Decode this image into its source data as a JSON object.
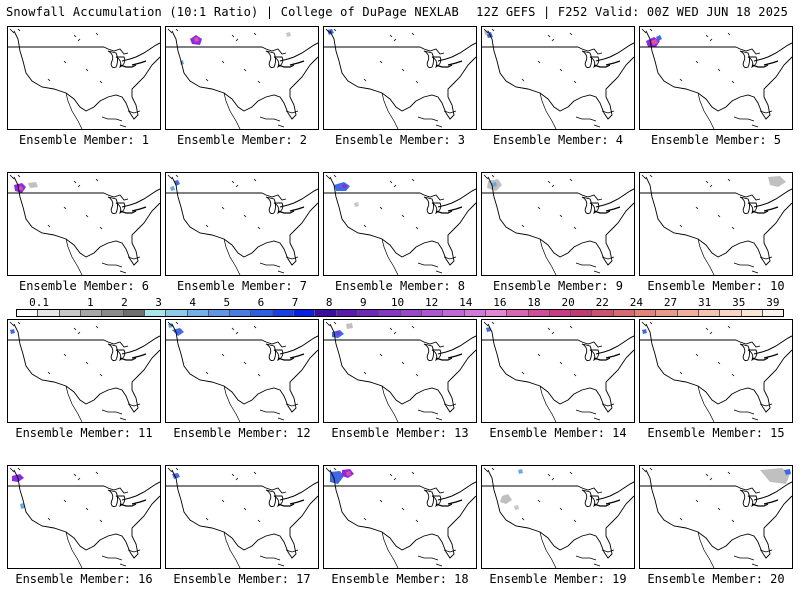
{
  "header": {
    "title_left": "Snowfall Accumulation (10:1 Ratio) | College of DuPage NEXLAB",
    "title_right": "12Z GEFS | F252 Valid: 00Z WED JUN 18 2025"
  },
  "panels": [
    {
      "label": "Ensemble Member: 1",
      "snow": []
    },
    {
      "label": "Ensemble Member: 2",
      "snow": [
        [
          "#8a2be2",
          [
            [
              24,
              12
            ],
            [
              30,
              8
            ],
            [
              36,
              12
            ],
            [
              34,
              18
            ],
            [
              26,
              17
            ]
          ]
        ],
        [
          "#e84aa5",
          [
            [
              28,
              11
            ],
            [
              32,
              10
            ],
            [
              33,
              14
            ],
            [
              29,
              15
            ]
          ]
        ],
        [
          "#6fa8dc",
          [
            [
              14,
              34
            ],
            [
              17,
              33
            ],
            [
              18,
              37
            ],
            [
              15,
              38
            ]
          ]
        ],
        [
          "#c8c8c8",
          [
            [
              120,
              6
            ],
            [
              124,
              5
            ],
            [
              125,
              9
            ],
            [
              121,
              10
            ]
          ]
        ]
      ]
    },
    {
      "label": "Ensemble Member: 3",
      "snow": [
        [
          "#4169e1",
          [
            [
              3,
              3
            ],
            [
              8,
              2
            ],
            [
              10,
              6
            ],
            [
              5,
              8
            ]
          ]
        ]
      ]
    },
    {
      "label": "Ensemble Member: 4",
      "snow": [
        [
          "#4169e1",
          [
            [
              4,
              6
            ],
            [
              9,
              5
            ],
            [
              11,
              10
            ],
            [
              6,
              11
            ]
          ]
        ],
        [
          "#c0c0c0",
          [
            [
              2,
              4
            ],
            [
              6,
              3
            ],
            [
              7,
              7
            ],
            [
              3,
              8
            ]
          ]
        ]
      ]
    },
    {
      "label": "Ensemble Member: 5",
      "snow": [
        [
          "#8a2be2",
          [
            [
              6,
              14
            ],
            [
              14,
              10
            ],
            [
              20,
              14
            ],
            [
              16,
              20
            ],
            [
              8,
              20
            ]
          ]
        ],
        [
          "#e84aa5",
          [
            [
              11,
              14
            ],
            [
              16,
              12
            ],
            [
              18,
              16
            ],
            [
              13,
              18
            ]
          ]
        ],
        [
          "#4169e1",
          [
            [
              16,
              10
            ],
            [
              20,
              8
            ],
            [
              22,
              12
            ],
            [
              18,
              14
            ]
          ]
        ]
      ]
    },
    {
      "label": "Ensemble Member: 6",
      "snow": [
        [
          "#8a2be2",
          [
            [
              6,
              12
            ],
            [
              14,
              10
            ],
            [
              18,
              14
            ],
            [
              14,
              20
            ],
            [
              7,
              18
            ]
          ]
        ],
        [
          "#e84aa5",
          [
            [
              10,
              14
            ],
            [
              14,
              13
            ],
            [
              15,
              17
            ],
            [
              11,
              17
            ]
          ]
        ],
        [
          "#c0c0c0",
          [
            [
              20,
              10
            ],
            [
              28,
              9
            ],
            [
              30,
              14
            ],
            [
              22,
              15
            ]
          ]
        ]
      ]
    },
    {
      "label": "Ensemble Member: 7",
      "snow": [
        [
          "#4169e1",
          [
            [
              8,
              8
            ],
            [
              12,
              7
            ],
            [
              14,
              11
            ],
            [
              10,
              13
            ]
          ]
        ],
        [
          "#6fa8dc",
          [
            [
              4,
              14
            ],
            [
              8,
              13
            ],
            [
              9,
              17
            ],
            [
              5,
              18
            ]
          ]
        ]
      ]
    },
    {
      "label": "Ensemble Member: 8",
      "snow": [
        [
          "#4169e1",
          [
            [
              10,
              12
            ],
            [
              20,
              9
            ],
            [
              26,
              13
            ],
            [
              22,
              18
            ],
            [
              12,
              18
            ]
          ]
        ],
        [
          "#8a2be2",
          [
            [
              18,
              12
            ],
            [
              22,
              11
            ],
            [
              23,
              15
            ],
            [
              19,
              15
            ]
          ]
        ],
        [
          "#c8c8c8",
          [
            [
              30,
              30
            ],
            [
              34,
              29
            ],
            [
              35,
              33
            ],
            [
              31,
              34
            ]
          ]
        ]
      ]
    },
    {
      "label": "Ensemble Member: 9",
      "snow": [
        [
          "#c0c0c0",
          [
            [
              6,
              8
            ],
            [
              16,
              6
            ],
            [
              20,
              12
            ],
            [
              14,
              18
            ],
            [
              5,
              15
            ]
          ]
        ],
        [
          "#6fa8dc",
          [
            [
              10,
              10
            ],
            [
              14,
              9
            ],
            [
              15,
              13
            ],
            [
              11,
              14
            ]
          ]
        ]
      ]
    },
    {
      "label": "Ensemble Member: 10",
      "snow": [
        [
          "#c0c0c0",
          [
            [
              128,
              4
            ],
            [
              140,
              3
            ],
            [
              146,
              9
            ],
            [
              138,
              14
            ],
            [
              130,
              12
            ]
          ]
        ]
      ]
    },
    {
      "label": "Ensemble Member: 11",
      "snow": [
        [
          "#4169e1",
          [
            [
              2,
              10
            ],
            [
              6,
              9
            ],
            [
              7,
              13
            ],
            [
              3,
              14
            ]
          ]
        ]
      ]
    },
    {
      "label": "Ensemble Member: 12",
      "snow": [
        [
          "#4169e1",
          [
            [
              6,
              10
            ],
            [
              14,
              8
            ],
            [
              18,
              12
            ],
            [
              12,
              16
            ]
          ]
        ],
        [
          "#6fa8dc",
          [
            [
              2,
              4
            ],
            [
              6,
              3
            ],
            [
              7,
              7
            ],
            [
              3,
              8
            ]
          ]
        ]
      ]
    },
    {
      "label": "Ensemble Member: 13",
      "snow": [
        [
          "#4169e1",
          [
            [
              8,
              12
            ],
            [
              16,
              10
            ],
            [
              20,
              14
            ],
            [
              14,
              18
            ],
            [
              8,
              17
            ]
          ]
        ],
        [
          "#8a2be2",
          [
            [
              12,
              12
            ],
            [
              15,
              11
            ],
            [
              16,
              15
            ],
            [
              13,
              15
            ]
          ]
        ],
        [
          "#c0c0c0",
          [
            [
              22,
              4
            ],
            [
              28,
              3
            ],
            [
              29,
              8
            ],
            [
              23,
              9
            ]
          ]
        ]
      ]
    },
    {
      "label": "Ensemble Member: 14",
      "snow": [
        [
          "#4169e1",
          [
            [
              4,
              8
            ],
            [
              8,
              7
            ],
            [
              9,
              11
            ],
            [
              5,
              12
            ]
          ]
        ]
      ]
    },
    {
      "label": "Ensemble Member: 15",
      "snow": [
        [
          "#4169e1",
          [
            [
              2,
              10
            ],
            [
              6,
              9
            ],
            [
              7,
              13
            ],
            [
              3,
              14
            ]
          ]
        ]
      ]
    },
    {
      "label": "Ensemble Member: 16",
      "snow": [
        [
          "#8a2be2",
          [
            [
              4,
              10
            ],
            [
              12,
              8
            ],
            [
              16,
              12
            ],
            [
              10,
              16
            ],
            [
              4,
              15
            ]
          ]
        ],
        [
          "#6fa8dc",
          [
            [
              12,
              38
            ],
            [
              16,
              37
            ],
            [
              17,
              42
            ],
            [
              13,
              43
            ]
          ]
        ]
      ]
    },
    {
      "label": "Ensemble Member: 17",
      "snow": [
        [
          "#4169e1",
          [
            [
              6,
              8
            ],
            [
              12,
              7
            ],
            [
              14,
              11
            ],
            [
              8,
              13
            ]
          ]
        ]
      ]
    },
    {
      "label": "Ensemble Member: 18",
      "snow": [
        [
          "#4169e1",
          [
            [
              6,
              6
            ],
            [
              16,
              5
            ],
            [
              20,
              10
            ],
            [
              14,
              18
            ],
            [
              6,
              16
            ]
          ]
        ],
        [
          "#8a2be2",
          [
            [
              18,
              4
            ],
            [
              26,
              3
            ],
            [
              30,
              8
            ],
            [
              24,
              12
            ],
            [
              18,
              10
            ]
          ]
        ],
        [
          "#e84aa5",
          [
            [
              22,
              6
            ],
            [
              26,
              5
            ],
            [
              27,
              9
            ],
            [
              23,
              10
            ]
          ]
        ]
      ]
    },
    {
      "label": "Ensemble Member: 19",
      "snow": [
        [
          "#c0c0c0",
          [
            [
              20,
              30
            ],
            [
              26,
              28
            ],
            [
              30,
              34
            ],
            [
              24,
              38
            ],
            [
              18,
              36
            ]
          ]
        ],
        [
          "#c8c8c8",
          [
            [
              32,
              40
            ],
            [
              36,
              39
            ],
            [
              37,
              43
            ],
            [
              33,
              44
            ]
          ]
        ],
        [
          "#6fa8dc",
          [
            [
              36,
              4
            ],
            [
              40,
              3
            ],
            [
              41,
              7
            ],
            [
              37,
              8
            ]
          ]
        ]
      ]
    },
    {
      "label": "Ensemble Member: 20",
      "snow": [
        [
          "#c0c0c0",
          [
            [
              120,
              4
            ],
            [
              142,
              2
            ],
            [
              150,
              8
            ],
            [
              146,
              18
            ],
            [
              130,
              16
            ]
          ]
        ],
        [
          "#4169e1",
          [
            [
              144,
              4
            ],
            [
              150,
              3
            ],
            [
              151,
              8
            ],
            [
              146,
              9
            ]
          ]
        ]
      ]
    }
  ],
  "colorbar": {
    "colors": [
      "#ffffff",
      "#e6e6e6",
      "#c8c8c8",
      "#a8a8a8",
      "#8a8a8a",
      "#6e6e6e",
      "#a8e6ea",
      "#8ecbe8",
      "#74b0e6",
      "#5f95e4",
      "#4a7be0",
      "#2f5ee0",
      "#1a3fe0",
      "#0a1ee0",
      "#3a0ea0",
      "#5a1ab0",
      "#6e28b8",
      "#8238c0",
      "#9648c8",
      "#aa58d0",
      "#be68d8",
      "#d278d8",
      "#e088d4",
      "#d866b4",
      "#d04c9c",
      "#c83a84",
      "#c23a72",
      "#cc5272",
      "#d66a74",
      "#e08478",
      "#e89a86",
      "#eeb09a",
      "#f2c4ae",
      "#f6d6c2",
      "#f9e6d6",
      "#fcf2ea"
    ],
    "ticks": [
      "0.1",
      "1",
      "2",
      "3",
      "4",
      "5",
      "6",
      "7",
      "8",
      "9",
      "10",
      "12",
      "14",
      "16",
      "18",
      "20",
      "22",
      "24",
      "27",
      "31",
      "35",
      "39"
    ]
  }
}
